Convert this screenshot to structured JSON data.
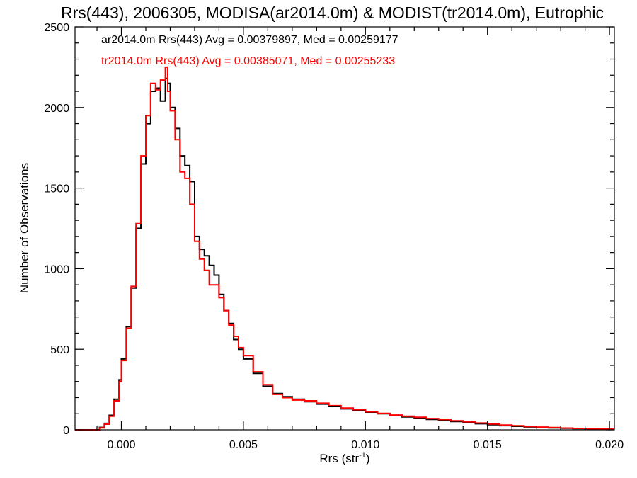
{
  "chart_data": {
    "type": "line",
    "title": "Rrs(443), 2006305, MODISA(ar2014.0m) & MODIST(tr2014.0m), Eutrophic",
    "xlabel": "Rrs (str",
    "xlabel_sup": "-1",
    "xlabel_close": ")",
    "ylabel": "Number of Observations",
    "xlim": [
      -0.0019,
      0.0202
    ],
    "ylim": [
      0,
      2500
    ],
    "x_ticks": [
      0.0,
      0.005,
      0.01,
      0.015,
      0.02
    ],
    "x_tick_labels": [
      "0.000",
      "0.005",
      "0.010",
      "0.015",
      "0.020"
    ],
    "y_ticks": [
      0,
      500,
      1000,
      1500,
      2000,
      2500
    ],
    "y_tick_labels": [
      "0",
      "500",
      "1000",
      "1500",
      "2000",
      "2500"
    ],
    "step": true,
    "series": [
      {
        "name": "ar2014.0m Rrs(443) Avg = 0.00379897, Med = 0.00259177",
        "color": "#000000",
        "points": [
          [
            -0.0019,
            0
          ],
          [
            -0.0011,
            0
          ],
          [
            -0.0009,
            15
          ],
          [
            -0.0007,
            40
          ],
          [
            -0.0005,
            90
          ],
          [
            -0.0003,
            190
          ],
          [
            -0.0001,
            310
          ],
          [
            0.0,
            440
          ],
          [
            0.0002,
            640
          ],
          [
            0.0004,
            880
          ],
          [
            0.0006,
            1250
          ],
          [
            0.0008,
            1650
          ],
          [
            0.001,
            1900
          ],
          [
            0.0012,
            2100
          ],
          [
            0.0014,
            2120
          ],
          [
            0.0016,
            2040
          ],
          [
            0.0018,
            2180
          ],
          [
            0.0019,
            2150
          ],
          [
            0.002,
            2000
          ],
          [
            0.0022,
            1870
          ],
          [
            0.0024,
            1700
          ],
          [
            0.0026,
            1640
          ],
          [
            0.0028,
            1540
          ],
          [
            0.003,
            1200
          ],
          [
            0.0032,
            1120
          ],
          [
            0.0034,
            1080
          ],
          [
            0.0036,
            1020
          ],
          [
            0.0038,
            960
          ],
          [
            0.004,
            840
          ],
          [
            0.0042,
            740
          ],
          [
            0.0044,
            660
          ],
          [
            0.0046,
            560
          ],
          [
            0.0048,
            500
          ],
          [
            0.005,
            440
          ],
          [
            0.0054,
            350
          ],
          [
            0.0058,
            270
          ],
          [
            0.0062,
            225
          ],
          [
            0.0066,
            205
          ],
          [
            0.007,
            190
          ],
          [
            0.0075,
            175
          ],
          [
            0.008,
            160
          ],
          [
            0.0085,
            145
          ],
          [
            0.009,
            130
          ],
          [
            0.0095,
            120
          ],
          [
            0.01,
            110
          ],
          [
            0.0105,
            100
          ],
          [
            0.011,
            90
          ],
          [
            0.0115,
            80
          ],
          [
            0.012,
            72
          ],
          [
            0.0125,
            65
          ],
          [
            0.013,
            60
          ],
          [
            0.0135,
            52
          ],
          [
            0.014,
            45
          ],
          [
            0.0145,
            38
          ],
          [
            0.015,
            32
          ],
          [
            0.0155,
            26
          ],
          [
            0.016,
            22
          ],
          [
            0.0165,
            18
          ],
          [
            0.017,
            15
          ],
          [
            0.0175,
            12
          ],
          [
            0.018,
            10
          ],
          [
            0.0185,
            8
          ],
          [
            0.019,
            6
          ],
          [
            0.0195,
            5
          ],
          [
            0.02,
            4
          ],
          [
            0.0202,
            4
          ]
        ]
      },
      {
        "name": "tr2014.0m Rrs(443) Avg = 0.00385071, Med = 0.00255233",
        "color": "#ff0000",
        "points": [
          [
            -0.0019,
            0
          ],
          [
            -0.0011,
            0
          ],
          [
            -0.0009,
            12
          ],
          [
            -0.0007,
            35
          ],
          [
            -0.0005,
            85
          ],
          [
            -0.0003,
            180
          ],
          [
            -0.0001,
            300
          ],
          [
            0.0,
            430
          ],
          [
            0.0002,
            630
          ],
          [
            0.0004,
            890
          ],
          [
            0.0006,
            1280
          ],
          [
            0.0008,
            1700
          ],
          [
            0.001,
            1950
          ],
          [
            0.0012,
            2150
          ],
          [
            0.0014,
            2110
          ],
          [
            0.0016,
            2170
          ],
          [
            0.0018,
            2250
          ],
          [
            0.0019,
            2100
          ],
          [
            0.002,
            1980
          ],
          [
            0.0022,
            1800
          ],
          [
            0.0024,
            1600
          ],
          [
            0.0026,
            1560
          ],
          [
            0.0028,
            1400
          ],
          [
            0.003,
            1170
          ],
          [
            0.0032,
            1060
          ],
          [
            0.0034,
            990
          ],
          [
            0.0036,
            900
          ],
          [
            0.0038,
            900
          ],
          [
            0.004,
            820
          ],
          [
            0.0042,
            740
          ],
          [
            0.0044,
            650
          ],
          [
            0.0046,
            580
          ],
          [
            0.0048,
            510
          ],
          [
            0.005,
            460
          ],
          [
            0.0054,
            360
          ],
          [
            0.0058,
            280
          ],
          [
            0.0062,
            220
          ],
          [
            0.0066,
            200
          ],
          [
            0.007,
            185
          ],
          [
            0.0075,
            180
          ],
          [
            0.008,
            165
          ],
          [
            0.0085,
            150
          ],
          [
            0.009,
            135
          ],
          [
            0.0095,
            125
          ],
          [
            0.01,
            112
          ],
          [
            0.0105,
            102
          ],
          [
            0.011,
            92
          ],
          [
            0.0115,
            85
          ],
          [
            0.012,
            78
          ],
          [
            0.0125,
            70
          ],
          [
            0.013,
            64
          ],
          [
            0.0135,
            56
          ],
          [
            0.014,
            50
          ],
          [
            0.0145,
            42
          ],
          [
            0.015,
            36
          ],
          [
            0.0155,
            30
          ],
          [
            0.016,
            25
          ],
          [
            0.0165,
            20
          ],
          [
            0.017,
            17
          ],
          [
            0.0175,
            14
          ],
          [
            0.018,
            11
          ],
          [
            0.0185,
            9
          ],
          [
            0.019,
            7
          ],
          [
            0.0195,
            6
          ],
          [
            0.02,
            5
          ],
          [
            0.0202,
            5
          ]
        ]
      }
    ]
  }
}
